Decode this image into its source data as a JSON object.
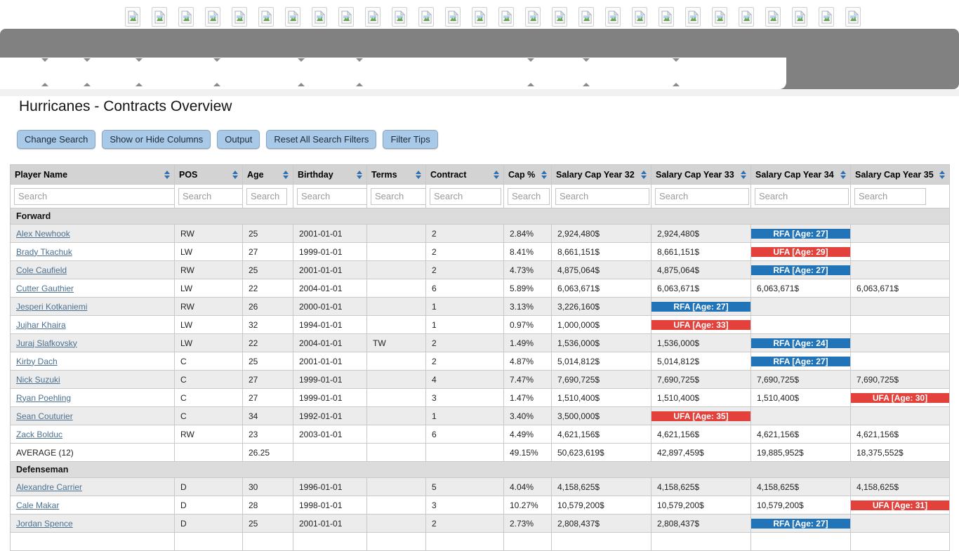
{
  "page": {
    "title": "Hurricanes - Contracts Overview"
  },
  "top_icons": {
    "count": 28,
    "icon": "broken-image-icon"
  },
  "toolbar": {
    "buttons": [
      "Change Search",
      "Show or Hide Columns",
      "Output",
      "Reset All Search Filters",
      "Filter Tips"
    ]
  },
  "table": {
    "search_placeholder": "Search",
    "columns": [
      "Player Name",
      "POS",
      "Age",
      "Birthday",
      "Terms",
      "Contract",
      "Cap %",
      "Salary Cap Year 32",
      "Salary Cap Year 33",
      "Salary Cap Year 34",
      "Salary Cap Year 35"
    ],
    "status_colors": {
      "rfa": "#2274b8",
      "ufa": "#e2413c"
    },
    "sections": [
      {
        "label": "Forward",
        "rows": [
          {
            "name": "Alex Newhook",
            "pos": "RW",
            "age": "25",
            "birthday": "2001-01-01",
            "terms": "",
            "contract": "2",
            "cap": "2.84%",
            "years": [
              "2,924,480$",
              "2,924,480$",
              {
                "badge": "RFA [Age: 27]",
                "status": "rfa"
              },
              ""
            ]
          },
          {
            "name": "Brady Tkachuk",
            "pos": "LW",
            "age": "27",
            "birthday": "1999-01-01",
            "terms": "",
            "contract": "2",
            "cap": "8.41%",
            "years": [
              "8,661,151$",
              "8,661,151$",
              {
                "badge": "UFA [Age: 29]",
                "status": "ufa"
              },
              ""
            ]
          },
          {
            "name": "Cole Caufield",
            "pos": "RW",
            "age": "25",
            "birthday": "2001-01-01",
            "terms": "",
            "contract": "2",
            "cap": "4.73%",
            "years": [
              "4,875,064$",
              "4,875,064$",
              {
                "badge": "RFA [Age: 27]",
                "status": "rfa"
              },
              ""
            ]
          },
          {
            "name": "Cutter Gauthier",
            "pos": "LW",
            "age": "22",
            "birthday": "2004-01-01",
            "terms": "",
            "contract": "6",
            "cap": "5.89%",
            "years": [
              "6,063,671$",
              "6,063,671$",
              "6,063,671$",
              "6,063,671$"
            ]
          },
          {
            "name": "Jesperi Kotkaniemi",
            "pos": "RW",
            "age": "26",
            "birthday": "2000-01-01",
            "terms": "",
            "contract": "1",
            "cap": "3.13%",
            "years": [
              "3,226,160$",
              {
                "badge": "RFA [Age: 27]",
                "status": "rfa"
              },
              "",
              ""
            ]
          },
          {
            "name": "Jujhar Khaira",
            "pos": "LW",
            "age": "32",
            "birthday": "1994-01-01",
            "terms": "",
            "contract": "1",
            "cap": "0.97%",
            "years": [
              "1,000,000$",
              {
                "badge": "UFA [Age: 33]",
                "status": "ufa"
              },
              "",
              ""
            ]
          },
          {
            "name": "Juraj Slafkovsky",
            "pos": "LW",
            "age": "22",
            "birthday": "2004-01-01",
            "terms": "TW",
            "contract": "2",
            "cap": "1.49%",
            "years": [
              "1,536,000$",
              "1,536,000$",
              {
                "badge": "RFA [Age: 24]",
                "status": "rfa"
              },
              ""
            ]
          },
          {
            "name": "Kirby Dach",
            "pos": "C",
            "age": "25",
            "birthday": "2001-01-01",
            "terms": "",
            "contract": "2",
            "cap": "4.87%",
            "years": [
              "5,014,812$",
              "5,014,812$",
              {
                "badge": "RFA [Age: 27]",
                "status": "rfa"
              },
              ""
            ]
          },
          {
            "name": "Nick Suzuki",
            "pos": "C",
            "age": "27",
            "birthday": "1999-01-01",
            "terms": "",
            "contract": "4",
            "cap": "7.47%",
            "years": [
              "7,690,725$",
              "7,690,725$",
              "7,690,725$",
              "7,690,725$"
            ]
          },
          {
            "name": "Ryan Poehling",
            "pos": "C",
            "age": "27",
            "birthday": "1999-01-01",
            "terms": "",
            "contract": "3",
            "cap": "1.47%",
            "years": [
              "1,510,400$",
              "1,510,400$",
              "1,510,400$",
              {
                "badge": "UFA [Age: 30]",
                "status": "ufa"
              }
            ]
          },
          {
            "name": "Sean Couturier",
            "pos": "C",
            "age": "34",
            "birthday": "1992-01-01",
            "terms": "",
            "contract": "1",
            "cap": "3.40%",
            "years": [
              "3,500,000$",
              {
                "badge": "UFA [Age: 35]",
                "status": "ufa"
              },
              "",
              ""
            ]
          },
          {
            "name": "Zack Bolduc",
            "pos": "RW",
            "age": "23",
            "birthday": "2003-01-01",
            "terms": "",
            "contract": "6",
            "cap": "4.49%",
            "years": [
              "4,621,156$",
              "4,621,156$",
              "4,621,156$",
              "4,621,156$"
            ]
          }
        ],
        "average": {
          "label": "AVERAGE (12)",
          "age": "26.25",
          "cap": "49.15%",
          "years": [
            "50,623,619$",
            "42,897,459$",
            "19,885,952$",
            "18,375,552$"
          ]
        }
      },
      {
        "label": "Defenseman",
        "rows": [
          {
            "name": "Alexandre Carrier",
            "pos": "D",
            "age": "30",
            "birthday": "1996-01-01",
            "terms": "",
            "contract": "5",
            "cap": "4.04%",
            "years": [
              "4,158,625$",
              "4,158,625$",
              "4,158,625$",
              "4,158,625$"
            ]
          },
          {
            "name": "Cale Makar",
            "pos": "D",
            "age": "28",
            "birthday": "1998-01-01",
            "terms": "",
            "contract": "3",
            "cap": "10.27%",
            "years": [
              "10,579,200$",
              "10,579,200$",
              "10,579,200$",
              {
                "badge": "UFA [Age: 31]",
                "status": "ufa"
              }
            ]
          },
          {
            "name": "Jordan Spence",
            "pos": "D",
            "age": "25",
            "birthday": "2001-01-01",
            "terms": "",
            "contract": "2",
            "cap": "2.73%",
            "years": [
              "2,808,437$",
              "2,808,437$",
              {
                "badge": "RFA [Age: 27]",
                "status": "rfa"
              },
              ""
            ]
          },
          {
            "name": "",
            "pos": "",
            "age": "",
            "birthday": "",
            "terms": "",
            "contract": "",
            "cap": "",
            "years": [
              "",
              {
                "badge": "",
                "status": "rfa"
              },
              "",
              ""
            ]
          }
        ]
      }
    ]
  }
}
